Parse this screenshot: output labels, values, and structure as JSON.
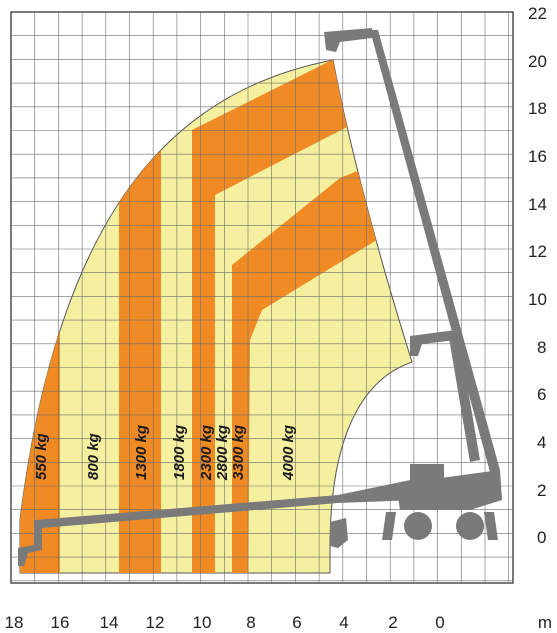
{
  "chart_data": {
    "type": "load-chart",
    "x_unit": "m",
    "x_ticks": [
      "18",
      "16",
      "14",
      "12",
      "10",
      "8",
      "6",
      "4",
      "2",
      "0"
    ],
    "y_ticks": [
      "22",
      "20",
      "18",
      "16",
      "14",
      "12",
      "10",
      "8",
      "6",
      "4",
      "2",
      "0"
    ],
    "load_zones": [
      "550 kg",
      "800 kg",
      "1300 kg",
      "1800 kg",
      "2300 kg",
      "2800 kg",
      "3300 kg",
      "4000 kg"
    ],
    "colors": {
      "zone_light": "#f5f0a0",
      "zone_orange": "#f08a24",
      "machine": "#7a7a7a",
      "grid": "#6e6e6e",
      "frame": "#222222"
    }
  }
}
